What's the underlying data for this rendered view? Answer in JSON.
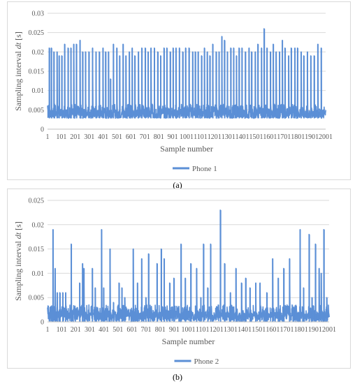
{
  "chart_data": [
    {
      "type": "line",
      "ylabel_main": "Sampling interval ",
      "ylabel_italic": "dt",
      "ylabel_unit": " [s]",
      "xlabel": "Sample number",
      "ylim": [
        0,
        0.03
      ],
      "yticks": [
        "0",
        "0.005",
        "0.01",
        "0.015",
        "0.02",
        "0.025",
        "0.03"
      ],
      "xticks": [
        "1",
        "101",
        "201",
        "301",
        "401",
        "501",
        "601",
        "701",
        "801",
        "901",
        "1001",
        "1101",
        "1201",
        "1301",
        "1401",
        "1501",
        "1601",
        "1701",
        "1801",
        "1901",
        "2001"
      ],
      "xlim": [
        1,
        2001
      ],
      "grid": true,
      "legend_position": "bottom",
      "color": "#5b8fd6",
      "series": [
        {
          "name": "Phone 1",
          "baseline_low": 0.0028,
          "baseline_high": 0.0065,
          "spikes": [
            {
              "x": 15,
              "y": 0.021
            },
            {
              "x": 30,
              "y": 0.021
            },
            {
              "x": 48,
              "y": 0.02
            },
            {
              "x": 70,
              "y": 0.02
            },
            {
              "x": 85,
              "y": 0.019
            },
            {
              "x": 105,
              "y": 0.019
            },
            {
              "x": 125,
              "y": 0.022
            },
            {
              "x": 150,
              "y": 0.021
            },
            {
              "x": 170,
              "y": 0.021
            },
            {
              "x": 190,
              "y": 0.022
            },
            {
              "x": 210,
              "y": 0.022
            },
            {
              "x": 235,
              "y": 0.023
            },
            {
              "x": 255,
              "y": 0.02
            },
            {
              "x": 275,
              "y": 0.02
            },
            {
              "x": 300,
              "y": 0.02
            },
            {
              "x": 325,
              "y": 0.021
            },
            {
              "x": 350,
              "y": 0.02
            },
            {
              "x": 375,
              "y": 0.02
            },
            {
              "x": 400,
              "y": 0.021
            },
            {
              "x": 420,
              "y": 0.02
            },
            {
              "x": 440,
              "y": 0.02
            },
            {
              "x": 455,
              "y": 0.013
            },
            {
              "x": 475,
              "y": 0.022
            },
            {
              "x": 500,
              "y": 0.021
            },
            {
              "x": 520,
              "y": 0.019
            },
            {
              "x": 545,
              "y": 0.022
            },
            {
              "x": 565,
              "y": 0.019
            },
            {
              "x": 590,
              "y": 0.02
            },
            {
              "x": 610,
              "y": 0.021
            },
            {
              "x": 630,
              "y": 0.019
            },
            {
              "x": 655,
              "y": 0.02
            },
            {
              "x": 680,
              "y": 0.021
            },
            {
              "x": 705,
              "y": 0.021
            },
            {
              "x": 725,
              "y": 0.02
            },
            {
              "x": 745,
              "y": 0.021
            },
            {
              "x": 770,
              "y": 0.021
            },
            {
              "x": 795,
              "y": 0.02
            },
            {
              "x": 815,
              "y": 0.019
            },
            {
              "x": 840,
              "y": 0.021
            },
            {
              "x": 860,
              "y": 0.021
            },
            {
              "x": 885,
              "y": 0.02
            },
            {
              "x": 905,
              "y": 0.021
            },
            {
              "x": 925,
              "y": 0.021
            },
            {
              "x": 950,
              "y": 0.021
            },
            {
              "x": 975,
              "y": 0.02
            },
            {
              "x": 995,
              "y": 0.021
            },
            {
              "x": 1020,
              "y": 0.021
            },
            {
              "x": 1045,
              "y": 0.02
            },
            {
              "x": 1065,
              "y": 0.02
            },
            {
              "x": 1085,
              "y": 0.02
            },
            {
              "x": 1110,
              "y": 0.019
            },
            {
              "x": 1130,
              "y": 0.021
            },
            {
              "x": 1150,
              "y": 0.02
            },
            {
              "x": 1170,
              "y": 0.019
            },
            {
              "x": 1190,
              "y": 0.022
            },
            {
              "x": 1215,
              "y": 0.02
            },
            {
              "x": 1235,
              "y": 0.02
            },
            {
              "x": 1255,
              "y": 0.024
            },
            {
              "x": 1275,
              "y": 0.023
            },
            {
              "x": 1295,
              "y": 0.02
            },
            {
              "x": 1320,
              "y": 0.021
            },
            {
              "x": 1340,
              "y": 0.021
            },
            {
              "x": 1360,
              "y": 0.019
            },
            {
              "x": 1380,
              "y": 0.021
            },
            {
              "x": 1400,
              "y": 0.021
            },
            {
              "x": 1425,
              "y": 0.02
            },
            {
              "x": 1450,
              "y": 0.021
            },
            {
              "x": 1470,
              "y": 0.02
            },
            {
              "x": 1495,
              "y": 0.02
            },
            {
              "x": 1515,
              "y": 0.022
            },
            {
              "x": 1540,
              "y": 0.021
            },
            {
              "x": 1560,
              "y": 0.026
            },
            {
              "x": 1580,
              "y": 0.021
            },
            {
              "x": 1605,
              "y": 0.02
            },
            {
              "x": 1625,
              "y": 0.022
            },
            {
              "x": 1645,
              "y": 0.02
            },
            {
              "x": 1670,
              "y": 0.02
            },
            {
              "x": 1690,
              "y": 0.023
            },
            {
              "x": 1710,
              "y": 0.021
            },
            {
              "x": 1735,
              "y": 0.019
            },
            {
              "x": 1755,
              "y": 0.021
            },
            {
              "x": 1780,
              "y": 0.021
            },
            {
              "x": 1800,
              "y": 0.021
            },
            {
              "x": 1825,
              "y": 0.02
            },
            {
              "x": 1845,
              "y": 0.019
            },
            {
              "x": 1870,
              "y": 0.02
            },
            {
              "x": 1895,
              "y": 0.019
            },
            {
              "x": 1920,
              "y": 0.019
            },
            {
              "x": 1945,
              "y": 0.022
            },
            {
              "x": 1970,
              "y": 0.021
            }
          ]
        }
      ]
    },
    {
      "type": "line",
      "ylabel_main": "Sampling interval ",
      "ylabel_italic": "dt",
      "ylabel_unit": " [s]",
      "xlabel": "Sample  number",
      "ylim": [
        0,
        0.025
      ],
      "yticks": [
        "0",
        "0.005",
        "0.01",
        "0.015",
        "0.02",
        "0.025"
      ],
      "xticks": [
        "1",
        "101",
        "201",
        "301",
        "401",
        "501",
        "601",
        "701",
        "801",
        "901",
        "1001",
        "1101",
        "1201",
        "1301",
        "1401",
        "1501",
        "1601",
        "1701",
        "1801",
        "1901",
        "2001"
      ],
      "xlim": [
        1,
        2001
      ],
      "grid": true,
      "legend_position": "bottom",
      "color": "#5b8fd6",
      "series": [
        {
          "name": "Phone 2",
          "baseline_low": 0.0,
          "baseline_high": 0.0035,
          "spikes": [
            {
              "x": 40,
              "y": 0.019
            },
            {
              "x": 55,
              "y": 0.011
            },
            {
              "x": 70,
              "y": 0.006
            },
            {
              "x": 90,
              "y": 0.006
            },
            {
              "x": 110,
              "y": 0.006
            },
            {
              "x": 130,
              "y": 0.006
            },
            {
              "x": 170,
              "y": 0.016
            },
            {
              "x": 230,
              "y": 0.008
            },
            {
              "x": 250,
              "y": 0.012
            },
            {
              "x": 260,
              "y": 0.011
            },
            {
              "x": 320,
              "y": 0.011
            },
            {
              "x": 340,
              "y": 0.007
            },
            {
              "x": 385,
              "y": 0.019
            },
            {
              "x": 400,
              "y": 0.007
            },
            {
              "x": 445,
              "y": 0.015
            },
            {
              "x": 470,
              "y": 0.004
            },
            {
              "x": 510,
              "y": 0.008
            },
            {
              "x": 530,
              "y": 0.007
            },
            {
              "x": 550,
              "y": 0.005
            },
            {
              "x": 610,
              "y": 0.015
            },
            {
              "x": 640,
              "y": 0.008
            },
            {
              "x": 670,
              "y": 0.013
            },
            {
              "x": 700,
              "y": 0.005
            },
            {
              "x": 720,
              "y": 0.014
            },
            {
              "x": 780,
              "y": 0.012
            },
            {
              "x": 810,
              "y": 0.015
            },
            {
              "x": 830,
              "y": 0.013
            },
            {
              "x": 870,
              "y": 0.008
            },
            {
              "x": 900,
              "y": 0.009
            },
            {
              "x": 950,
              "y": 0.016
            },
            {
              "x": 980,
              "y": 0.009
            },
            {
              "x": 1020,
              "y": 0.012
            },
            {
              "x": 1060,
              "y": 0.011
            },
            {
              "x": 1090,
              "y": 0.005
            },
            {
              "x": 1110,
              "y": 0.016
            },
            {
              "x": 1140,
              "y": 0.007
            },
            {
              "x": 1160,
              "y": 0.016
            },
            {
              "x": 1230,
              "y": 0.023
            },
            {
              "x": 1260,
              "y": 0.012
            },
            {
              "x": 1300,
              "y": 0.006
            },
            {
              "x": 1340,
              "y": 0.011
            },
            {
              "x": 1380,
              "y": 0.008
            },
            {
              "x": 1410,
              "y": 0.009
            },
            {
              "x": 1440,
              "y": 0.007
            },
            {
              "x": 1480,
              "y": 0.008
            },
            {
              "x": 1510,
              "y": 0.008
            },
            {
              "x": 1560,
              "y": 0.006
            },
            {
              "x": 1600,
              "y": 0.013
            },
            {
              "x": 1640,
              "y": 0.009
            },
            {
              "x": 1680,
              "y": 0.011
            },
            {
              "x": 1720,
              "y": 0.013
            },
            {
              "x": 1750,
              "y": 0.003
            },
            {
              "x": 1795,
              "y": 0.019
            },
            {
              "x": 1820,
              "y": 0.007
            },
            {
              "x": 1860,
              "y": 0.018
            },
            {
              "x": 1880,
              "y": 0.005
            },
            {
              "x": 1905,
              "y": 0.016
            },
            {
              "x": 1930,
              "y": 0.011
            },
            {
              "x": 1945,
              "y": 0.01
            },
            {
              "x": 1965,
              "y": 0.019
            },
            {
              "x": 1985,
              "y": 0.005
            }
          ]
        }
      ]
    }
  ],
  "captions": [
    "(a)",
    "(b)"
  ]
}
